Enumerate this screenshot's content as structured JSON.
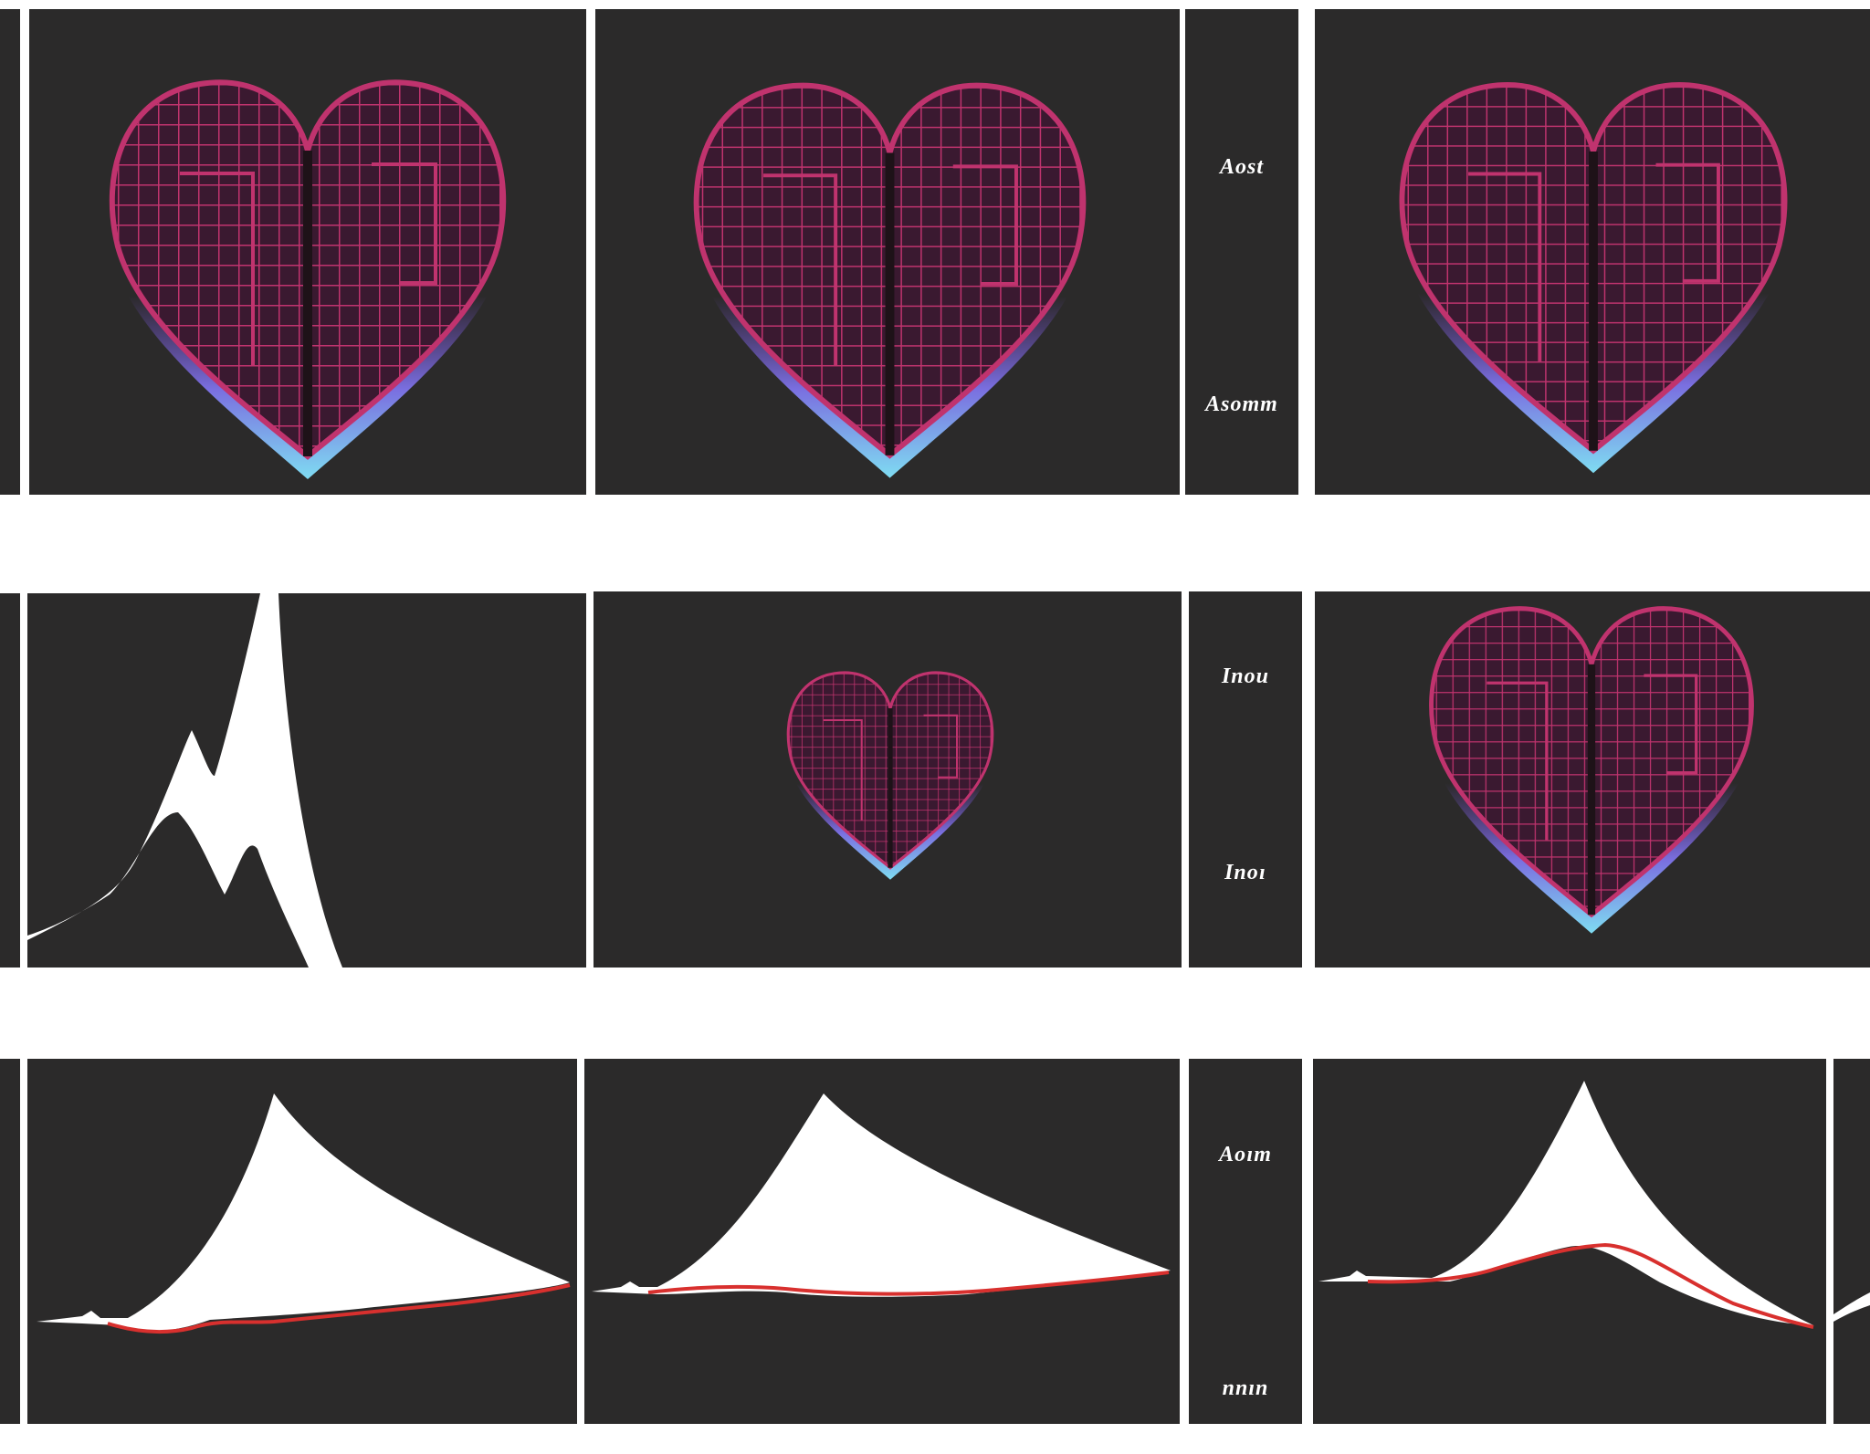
{
  "colors": {
    "page_background": "#ffffff",
    "panel_background": "#2b2a2a",
    "heart_grid": "#c0336e",
    "heart_fill": "#3a1930",
    "heart_glow": "#7fdcf2",
    "peak_fill": "#ffffff",
    "peak_edge": "#d8302e"
  },
  "icons": {
    "heart": "heart-mesh-icon",
    "peak": "mountain-peak-icon"
  },
  "row1": {
    "labels": {
      "top": "Aost",
      "bottom": "Asoтт"
    }
  },
  "row2": {
    "labels": {
      "top": "Inou",
      "bottom": "Inoɪ"
    }
  },
  "row3": {
    "labels": {
      "top": "Aoɪт",
      "bottom": "nnın"
    }
  }
}
